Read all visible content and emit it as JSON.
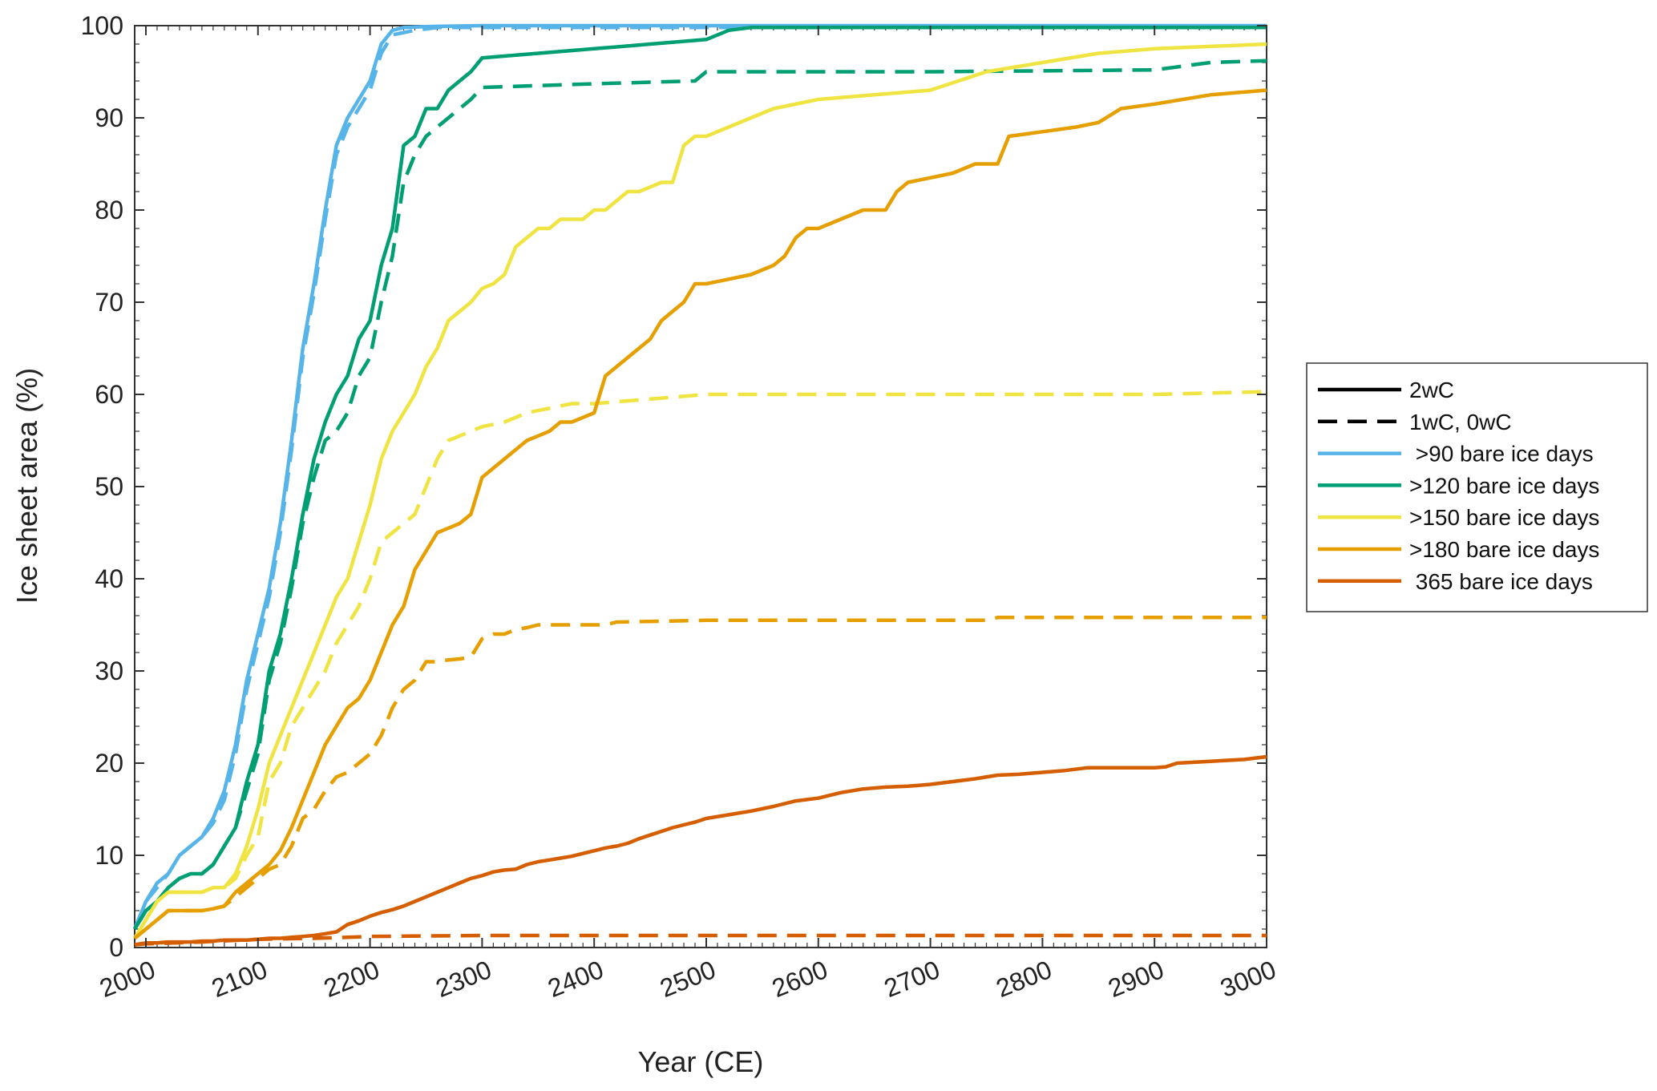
{
  "chart_data": {
    "type": "line",
    "title": "",
    "xlabel": "Year (CE)",
    "ylabel": "Ice sheet area (%)",
    "xlim": [
      1990,
      3000
    ],
    "ylim": [
      0,
      100
    ],
    "x_ticks": [
      "2000",
      "2100",
      "2200",
      "2300",
      "2400",
      "2500",
      "2600",
      "2700",
      "2800",
      "2900",
      "3000"
    ],
    "y_ticks": [
      "0",
      "10",
      "20",
      "30",
      "40",
      "50",
      "60",
      "70",
      "80",
      "90",
      "100"
    ],
    "grid": false,
    "legend_position": "right",
    "legend": {
      "styles": [
        {
          "label": "2wC",
          "dash": "solid"
        },
        {
          "label": "1wC, 0wC",
          "dash": "dashed"
        }
      ],
      "entries": [
        {
          "label": " >90 bare ice days",
          "color": "#56B4E9"
        },
        {
          "label": ">120 bare ice days",
          "color": "#009E73"
        },
        {
          "label": ">150 bare ice days",
          "color": "#F0E442"
        },
        {
          "label": ">180 bare ice days",
          "color": "#E69F00"
        },
        {
          "label": " 365 bare ice days",
          "color": "#D55E00"
        }
      ]
    },
    "series": [
      {
        "color": "#56B4E9",
        "dash": "solid",
        "x": [
          1990,
          2000,
          2010,
          2020,
          2030,
          2040,
          2050,
          2060,
          2070,
          2080,
          2090,
          2100,
          2110,
          2120,
          2130,
          2140,
          2150,
          2160,
          2170,
          2180,
          2190,
          2200,
          2210,
          2220,
          2230,
          2250,
          2300,
          3000
        ],
        "y": [
          2,
          5,
          7,
          8,
          10,
          11,
          12,
          14,
          17,
          22,
          29,
          34,
          39,
          46,
          55,
          65,
          72,
          80,
          87,
          90,
          92,
          94,
          98,
          99.5,
          99.8,
          99.9,
          100,
          100
        ]
      },
      {
        "color": "#56B4E9",
        "dash": "dashed",
        "x": [
          1990,
          2000,
          2010,
          2020,
          2030,
          2040,
          2050,
          2060,
          2070,
          2080,
          2090,
          2100,
          2110,
          2120,
          2130,
          2140,
          2150,
          2160,
          2170,
          2180,
          2190,
          2200,
          2210,
          2220,
          2240,
          2260,
          3000
        ],
        "y": [
          2,
          5,
          6.5,
          8,
          10,
          11,
          12,
          13.5,
          16,
          21,
          28,
          33,
          38,
          45,
          54,
          64,
          71,
          79,
          86,
          89,
          91,
          93,
          97,
          99,
          99.5,
          99.8,
          99.8
        ]
      },
      {
        "color": "#009E73",
        "dash": "solid",
        "x": [
          1990,
          2000,
          2010,
          2020,
          2030,
          2040,
          2050,
          2060,
          2070,
          2080,
          2090,
          2100,
          2110,
          2120,
          2130,
          2140,
          2150,
          2160,
          2170,
          2180,
          2190,
          2200,
          2210,
          2220,
          2230,
          2240,
          2250,
          2260,
          2270,
          2280,
          2290,
          2300,
          2350,
          2400,
          2450,
          2500,
          2520,
          2540,
          3000
        ],
        "y": [
          2,
          4,
          5,
          6.5,
          7.5,
          8,
          8,
          9,
          11,
          13,
          18,
          22,
          30,
          34,
          40,
          47,
          53,
          57,
          60,
          62,
          66,
          68,
          74,
          78,
          87,
          88,
          91,
          91,
          93,
          94,
          95,
          96.5,
          97,
          97.5,
          98,
          98.5,
          99.5,
          99.8,
          99.8
        ]
      },
      {
        "color": "#009E73",
        "dash": "dashed",
        "x": [
          1990,
          2000,
          2010,
          2020,
          2030,
          2040,
          2050,
          2060,
          2070,
          2080,
          2090,
          2100,
          2110,
          2120,
          2130,
          2140,
          2150,
          2160,
          2170,
          2180,
          2190,
          2200,
          2210,
          2220,
          2230,
          2240,
          2250,
          2260,
          2270,
          2280,
          2290,
          2300,
          2400,
          2490,
          2500,
          2600,
          2700,
          2900,
          2950,
          3000
        ],
        "y": [
          2,
          4,
          5,
          6.5,
          7.5,
          8,
          8,
          9,
          11,
          13,
          17,
          21,
          29,
          33,
          39,
          46,
          51,
          55,
          56,
          58,
          62,
          64,
          70,
          75,
          83,
          86,
          88,
          89,
          90,
          91,
          92,
          93.3,
          93.7,
          94,
          95,
          95,
          95,
          95.2,
          96,
          96.2
        ]
      },
      {
        "color": "#F0E442",
        "dash": "solid",
        "x": [
          1990,
          2000,
          2010,
          2020,
          2030,
          2040,
          2050,
          2060,
          2070,
          2080,
          2090,
          2100,
          2110,
          2120,
          2130,
          2140,
          2150,
          2160,
          2170,
          2180,
          2190,
          2200,
          2210,
          2220,
          2230,
          2240,
          2250,
          2260,
          2270,
          2280,
          2290,
          2300,
          2310,
          2320,
          2330,
          2340,
          2350,
          2360,
          2370,
          2380,
          2390,
          2400,
          2410,
          2420,
          2430,
          2440,
          2450,
          2460,
          2470,
          2480,
          2490,
          2500,
          2520,
          2540,
          2560,
          2600,
          2650,
          2700,
          2750,
          2800,
          2850,
          2900,
          3000
        ],
        "y": [
          1,
          3,
          5,
          6,
          6,
          6,
          6,
          6.5,
          6.5,
          8,
          11,
          15,
          20,
          23,
          26,
          29,
          32,
          35,
          38,
          40,
          44,
          48,
          53,
          56,
          58,
          60,
          63,
          65,
          68,
          69,
          70,
          71.5,
          72,
          73,
          76,
          77,
          78,
          78,
          79,
          79,
          79,
          80,
          80,
          81,
          82,
          82,
          82.5,
          83,
          83,
          87,
          88,
          88,
          89,
          90,
          91,
          92,
          92.5,
          93,
          95,
          96,
          97,
          97.5,
          98
        ]
      },
      {
        "color": "#F0E442",
        "dash": "dashed",
        "x": [
          1990,
          2000,
          2010,
          2020,
          2030,
          2040,
          2050,
          2060,
          2070,
          2080,
          2090,
          2100,
          2110,
          2120,
          2130,
          2140,
          2150,
          2160,
          2170,
          2180,
          2190,
          2200,
          2210,
          2220,
          2230,
          2240,
          2250,
          2260,
          2270,
          2280,
          2290,
          2300,
          2320,
          2340,
          2360,
          2380,
          2400,
          2450,
          2500,
          2600,
          2700,
          2800,
          2900,
          3000
        ],
        "y": [
          1,
          3,
          5,
          6,
          6,
          6,
          6,
          6.5,
          6.5,
          7.5,
          10,
          12,
          18,
          20,
          24,
          26,
          28,
          30,
          33,
          35,
          37,
          40,
          44,
          45,
          46,
          47,
          50,
          53,
          55,
          55.5,
          56,
          56.5,
          57,
          58,
          58.5,
          59,
          59,
          59.5,
          60,
          60,
          60,
          60,
          60,
          60.3
        ]
      },
      {
        "color": "#E69F00",
        "dash": "solid",
        "x": [
          1990,
          2000,
          2010,
          2020,
          2030,
          2040,
          2050,
          2060,
          2070,
          2080,
          2090,
          2100,
          2110,
          2120,
          2130,
          2140,
          2150,
          2160,
          2170,
          2180,
          2190,
          2200,
          2210,
          2220,
          2230,
          2240,
          2250,
          2260,
          2270,
          2280,
          2290,
          2300,
          2310,
          2320,
          2330,
          2340,
          2350,
          2360,
          2370,
          2380,
          2390,
          2400,
          2410,
          2420,
          2430,
          2440,
          2450,
          2460,
          2470,
          2480,
          2490,
          2500,
          2520,
          2540,
          2560,
          2570,
          2580,
          2590,
          2600,
          2620,
          2640,
          2660,
          2670,
          2680,
          2700,
          2720,
          2740,
          2760,
          2770,
          2800,
          2830,
          2850,
          2870,
          2900,
          2950,
          3000
        ],
        "y": [
          1,
          2,
          3,
          4,
          4,
          4,
          4,
          4.2,
          4.5,
          6,
          7,
          8,
          9,
          10.5,
          13,
          16,
          19,
          22,
          24,
          26,
          27,
          29,
          32,
          35,
          37,
          41,
          43,
          45,
          45.5,
          46,
          47,
          51,
          52,
          53,
          54,
          55,
          55.5,
          56,
          57,
          57,
          57.5,
          58,
          62,
          63,
          64,
          65,
          66,
          68,
          69,
          70,
          72,
          72,
          72.5,
          73,
          74,
          75,
          77,
          78,
          78,
          79,
          80,
          80,
          82,
          83,
          83.5,
          84,
          85,
          85,
          88,
          88.5,
          89,
          89.5,
          91,
          91.5,
          92.5,
          93
        ]
      },
      {
        "color": "#E69F00",
        "dash": "dashed",
        "x": [
          1990,
          2000,
          2010,
          2020,
          2030,
          2040,
          2050,
          2060,
          2070,
          2080,
          2090,
          2100,
          2110,
          2120,
          2130,
          2140,
          2150,
          2160,
          2170,
          2180,
          2190,
          2200,
          2210,
          2220,
          2230,
          2240,
          2250,
          2260,
          2270,
          2280,
          2290,
          2300,
          2310,
          2320,
          2330,
          2340,
          2350,
          2380,
          2400,
          2410,
          2420,
          2500,
          2600,
          2700,
          2750,
          2760,
          2800,
          3000
        ],
        "y": [
          1,
          2,
          3,
          4,
          4,
          4,
          4,
          4.2,
          4.5,
          5.5,
          6.5,
          7.5,
          8.5,
          9,
          11,
          14,
          15,
          17,
          18.5,
          19,
          20,
          21,
          23,
          26,
          28,
          29,
          31,
          31,
          31.2,
          31.3,
          31.5,
          33.5,
          34,
          34,
          34.5,
          34.7,
          35,
          35,
          35,
          35,
          35.3,
          35.5,
          35.5,
          35.5,
          35.5,
          35.8,
          35.8,
          35.8
        ]
      },
      {
        "color": "#D55E00",
        "dash": "solid",
        "x": [
          1990,
          2000,
          2010,
          2020,
          2030,
          2040,
          2050,
          2060,
          2070,
          2080,
          2090,
          2100,
          2110,
          2120,
          2130,
          2140,
          2150,
          2160,
          2170,
          2180,
          2190,
          2200,
          2210,
          2220,
          2230,
          2240,
          2250,
          2260,
          2270,
          2280,
          2290,
          2300,
          2310,
          2320,
          2330,
          2340,
          2350,
          2360,
          2370,
          2380,
          2390,
          2400,
          2410,
          2420,
          2430,
          2440,
          2450,
          2460,
          2470,
          2480,
          2490,
          2500,
          2520,
          2540,
          2560,
          2580,
          2600,
          2620,
          2640,
          2660,
          2680,
          2700,
          2720,
          2740,
          2760,
          2780,
          2800,
          2820,
          2840,
          2860,
          2880,
          2900,
          2910,
          2920,
          2950,
          2980,
          3000
        ],
        "y": [
          0.3,
          0.5,
          0.5,
          0.6,
          0.6,
          0.6,
          0.7,
          0.7,
          0.8,
          0.8,
          0.8,
          0.9,
          1,
          1,
          1.1,
          1.2,
          1.3,
          1.5,
          1.7,
          2.5,
          2.9,
          3.4,
          3.8,
          4.1,
          4.5,
          5,
          5.5,
          6,
          6.5,
          7,
          7.5,
          7.8,
          8.2,
          8.4,
          8.5,
          9,
          9.3,
          9.5,
          9.7,
          9.9,
          10.2,
          10.5,
          10.8,
          11,
          11.3,
          11.8,
          12.2,
          12.6,
          13,
          13.3,
          13.6,
          14,
          14.4,
          14.8,
          15.3,
          15.9,
          16.2,
          16.8,
          17.2,
          17.4,
          17.5,
          17.7,
          18,
          18.3,
          18.7,
          18.8,
          19,
          19.2,
          19.5,
          19.5,
          19.5,
          19.5,
          19.6,
          20,
          20.2,
          20.4,
          20.7
        ]
      },
      {
        "color": "#D55E00",
        "dash": "dashed",
        "x": [
          1990,
          2000,
          2050,
          2100,
          2150,
          2180,
          2200,
          2300,
          2500,
          2800,
          3000
        ],
        "y": [
          0.3,
          0.4,
          0.6,
          0.9,
          1.0,
          1.1,
          1.2,
          1.3,
          1.3,
          1.3,
          1.3
        ]
      }
    ]
  }
}
